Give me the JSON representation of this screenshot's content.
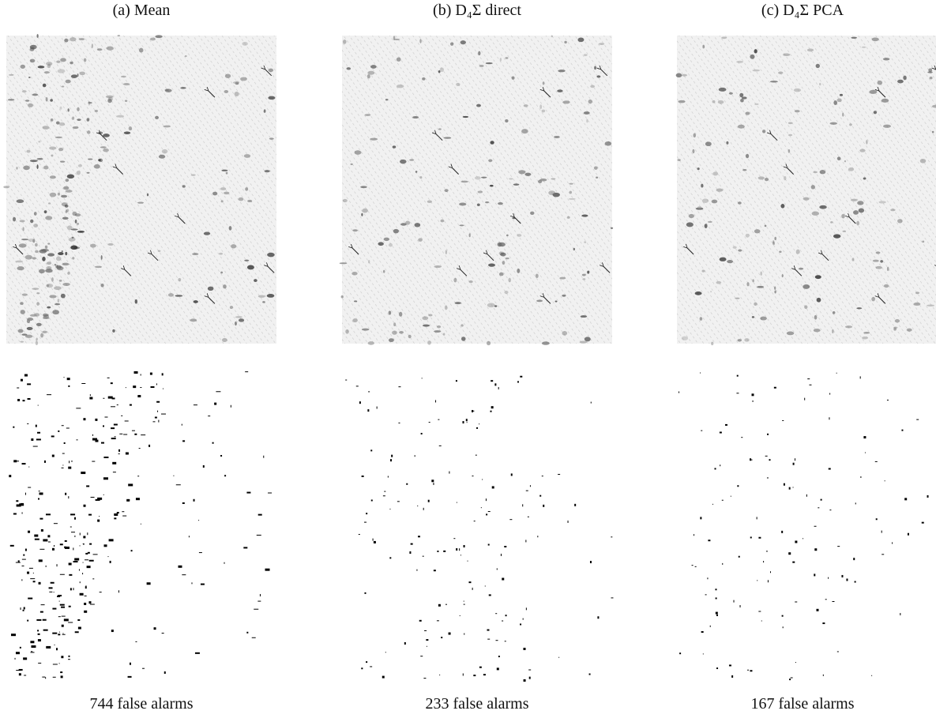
{
  "panels": [
    {
      "title": "(a) Mean",
      "caption": "744 false alarms"
    },
    {
      "title": "(b) D₄Σ direct",
      "caption": "233 false alarms"
    },
    {
      "title": "(c) D₄Σ PCA",
      "caption": "167 false alarms"
    }
  ]
}
